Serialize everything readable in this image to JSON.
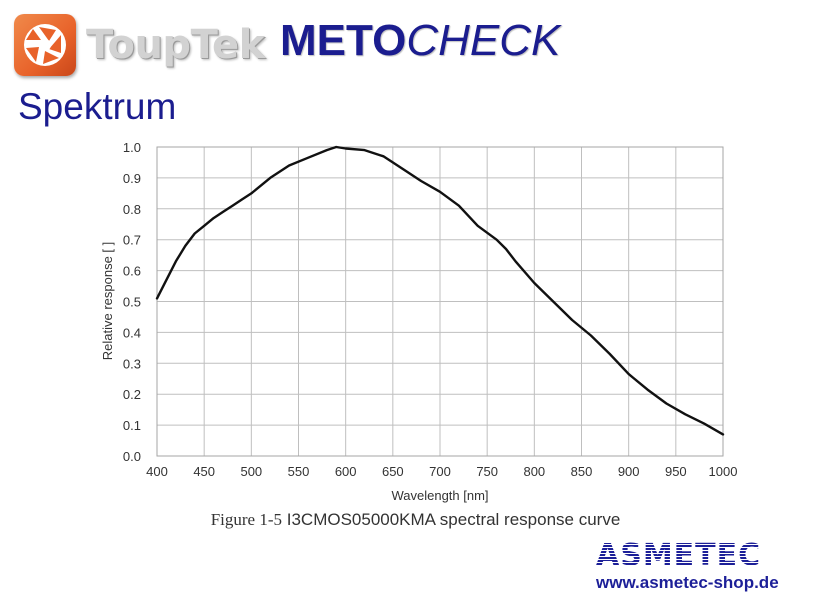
{
  "header": {
    "logo_text": "ToupTek",
    "product_part1": "METO",
    "product_part2": "CHECK"
  },
  "heading": "Spektrum",
  "caption": {
    "part1": "Figure 1-5",
    "part2": "I3CMOS05000KMA spectral response curve"
  },
  "footer": {
    "brand": "ASMETEC",
    "url": "www.asmetec-shop.de"
  },
  "colors": {
    "brand_blue": "#1b1d8f",
    "logo_orange": "#e8622a",
    "curve": "#111111",
    "grid": "#bfbfbf"
  },
  "icons": {
    "logo": "aperture-icon"
  },
  "chart_data": {
    "type": "line",
    "title": "",
    "xlabel": "Wavelength [nm]",
    "ylabel": "Relative response [ ]",
    "xlim": [
      400,
      1000
    ],
    "ylim": [
      0,
      1.0
    ],
    "x_ticks": [
      400,
      450,
      500,
      550,
      600,
      650,
      700,
      750,
      800,
      850,
      900,
      950,
      1000
    ],
    "y_ticks": [
      "0.0",
      "0.1",
      "0.2",
      "0.3",
      "0.4",
      "0.5",
      "0.6",
      "0.7",
      "0.8",
      "0.9",
      "1.0"
    ],
    "grid": true,
    "legend": "none",
    "series": [
      {
        "x": [
          400,
          410,
          420,
          430,
          440,
          450,
          460,
          470,
          480,
          490,
          500,
          520,
          540,
          560,
          580,
          590,
          600,
          620,
          640,
          660,
          680,
          700,
          720,
          740,
          760,
          770,
          780,
          800,
          820,
          840,
          860,
          880,
          900,
          920,
          940,
          960,
          980,
          1000
        ],
        "y": [
          0.51,
          0.57,
          0.63,
          0.68,
          0.72,
          0.745,
          0.77,
          0.79,
          0.81,
          0.83,
          0.85,
          0.9,
          0.94,
          0.965,
          0.99,
          1.0,
          0.995,
          0.99,
          0.97,
          0.93,
          0.89,
          0.855,
          0.81,
          0.745,
          0.7,
          0.67,
          0.63,
          0.56,
          0.5,
          0.44,
          0.39,
          0.33,
          0.265,
          0.215,
          0.17,
          0.135,
          0.105,
          0.07
        ]
      }
    ]
  }
}
